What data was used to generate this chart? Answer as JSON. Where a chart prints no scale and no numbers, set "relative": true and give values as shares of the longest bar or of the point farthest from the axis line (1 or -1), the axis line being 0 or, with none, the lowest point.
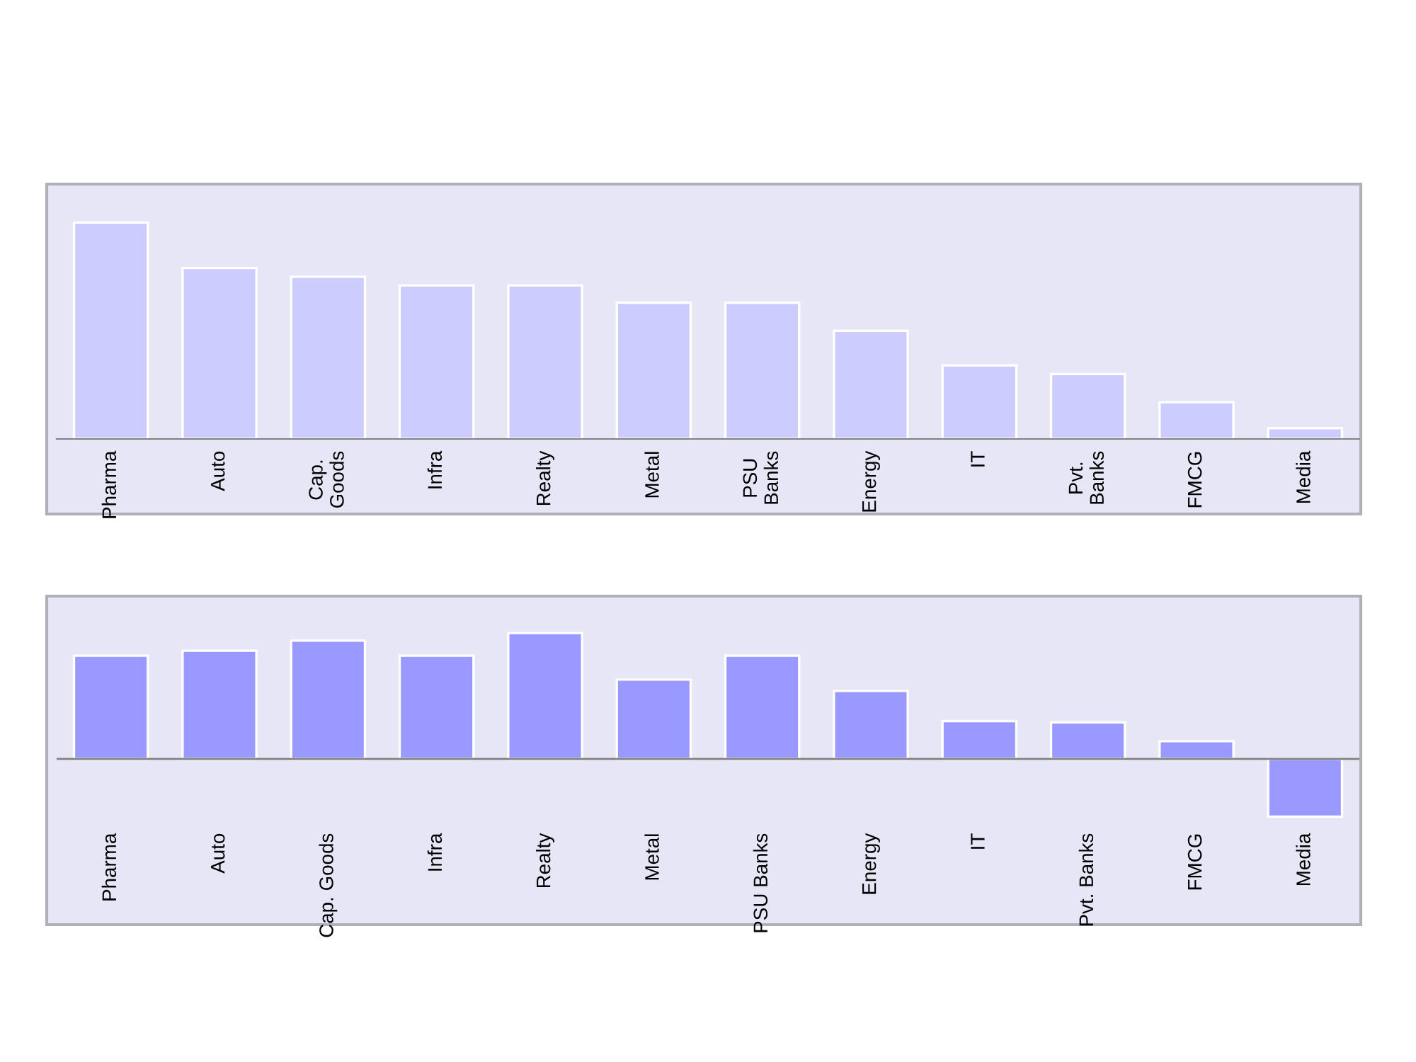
{
  "chart_data": [
    {
      "type": "bar",
      "relative": true,
      "color": "#ccccff",
      "categories": [
        "Pharma",
        "Auto",
        "Cap.\nGoods",
        "Infra",
        "Realty",
        "Metal",
        "PSU\nBanks",
        "Energy",
        "IT",
        "Pvt.\nBanks",
        "FMCG",
        "Media"
      ],
      "values": [
        1,
        0.79,
        0.75,
        0.71,
        0.71,
        0.63,
        0.63,
        0.5,
        0.34,
        0.3,
        0.17,
        0.05
      ]
    },
    {
      "type": "bar",
      "relative": true,
      "color": "#9999ff",
      "categories": [
        "Pharma",
        "Auto",
        "Cap. Goods",
        "Infra",
        "Realty",
        "Metal",
        "PSU Banks",
        "Energy",
        "IT",
        "Pvt. Banks",
        "FMCG",
        "Media"
      ],
      "values": [
        0.82,
        0.86,
        0.94,
        0.82,
        1,
        0.63,
        0.82,
        0.54,
        0.3,
        0.29,
        0.14,
        -0.46
      ]
    }
  ]
}
